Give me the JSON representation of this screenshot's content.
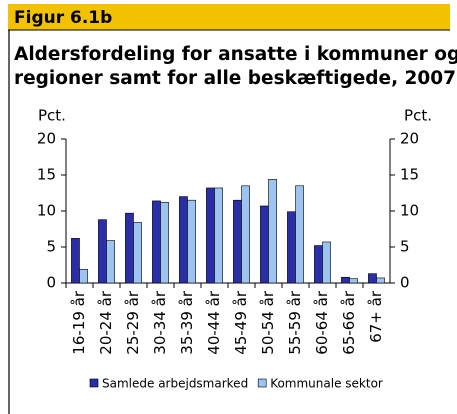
{
  "header": {
    "label": "Figur 6.1b"
  },
  "chart_data": {
    "type": "bar",
    "title_lines": [
      "Aldersfordeling for ansatte i kommuner og",
      "regioner samt for alle beskæftigede, 2007"
    ],
    "ylabel": "Pct.",
    "y2label": "Pct.",
    "categories": [
      "16-19 år",
      "20-24 år",
      "25-29 år",
      "30-34 år",
      "35-39 år",
      "40-44 år",
      "45-49 år",
      "50-54 år",
      "55-59 år",
      "60-64 år",
      "65-66 år",
      "67+ år"
    ],
    "series": [
      {
        "name": "Samlede arbejdsmarked",
        "color": "#2a2fa8",
        "values": [
          6.2,
          8.8,
          9.7,
          11.4,
          12.0,
          13.2,
          11.5,
          10.7,
          9.9,
          5.2,
          0.8,
          1.3
        ]
      },
      {
        "name": "Kommunale sektor",
        "color": "#9dc3f0",
        "values": [
          1.9,
          5.9,
          8.4,
          11.2,
          11.5,
          13.2,
          13.5,
          14.4,
          13.5,
          5.7,
          0.6,
          0.7
        ]
      }
    ],
    "ylim": [
      0,
      20
    ],
    "yticks": [
      0,
      5,
      10,
      15,
      20
    ],
    "y2lim": [
      0,
      20
    ],
    "y2ticks": [
      0,
      5,
      10,
      15,
      20
    ],
    "legend": "bottom"
  }
}
